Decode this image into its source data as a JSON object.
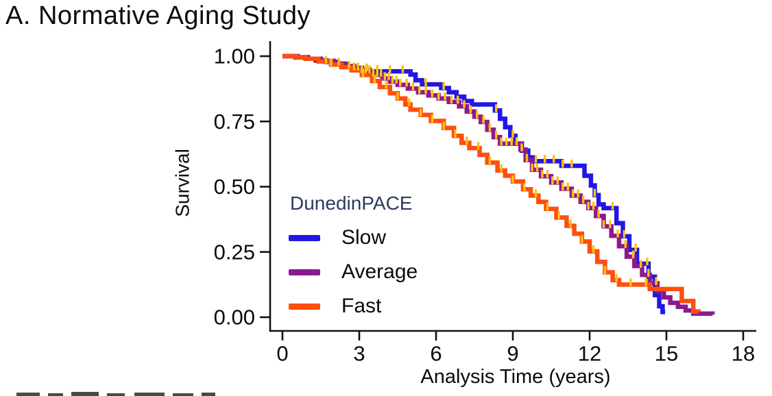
{
  "title": "A. Normative Aging Study",
  "chart_data": {
    "type": "line",
    "subtype": "kaplan-meier-step-survival",
    "title": "A. Normative Aging Study",
    "xlabel": "Analysis Time (years)",
    "ylabel": "Survival",
    "xlim": [
      0,
      18
    ],
    "ylim": [
      0.0,
      1.0
    ],
    "x_ticks": [
      0,
      3,
      6,
      9,
      12,
      15,
      18
    ],
    "y_ticks": [
      "1.00",
      "0.75",
      "0.50",
      "0.25",
      "0.00"
    ],
    "y_tick_values": [
      1.0,
      0.75,
      0.5,
      0.25,
      0.0
    ],
    "grid": false,
    "axis_color": "#111111",
    "censor_mark_color": "#ffc20e",
    "legend": {
      "title": "DunedinPACE",
      "title_color": "#2b3a5e",
      "position": "inside-lower-left"
    },
    "series": [
      {
        "name": "Slow",
        "color": "#2217e4",
        "points": [
          [
            0,
            1.0
          ],
          [
            0.5,
            0.995
          ],
          [
            0.9,
            0.99
          ],
          [
            1.3,
            0.984
          ],
          [
            1.7,
            0.978
          ],
          [
            2.1,
            0.97
          ],
          [
            2.5,
            0.962
          ],
          [
            2.8,
            0.955
          ],
          [
            3.1,
            0.948
          ],
          [
            3.4,
            0.942
          ],
          [
            5.0,
            0.93
          ],
          [
            5.2,
            0.908
          ],
          [
            5.45,
            0.892
          ],
          [
            6.2,
            0.878
          ],
          [
            6.5,
            0.862
          ],
          [
            6.8,
            0.845
          ],
          [
            7.1,
            0.828
          ],
          [
            7.4,
            0.815
          ],
          [
            8.3,
            0.792
          ],
          [
            8.5,
            0.76
          ],
          [
            8.7,
            0.728
          ],
          [
            8.9,
            0.695
          ],
          [
            9.1,
            0.665
          ],
          [
            9.35,
            0.638
          ],
          [
            9.6,
            0.612
          ],
          [
            9.8,
            0.598
          ],
          [
            10.9,
            0.58
          ],
          [
            11.8,
            0.542
          ],
          [
            12.05,
            0.505
          ],
          [
            12.2,
            0.468
          ],
          [
            12.35,
            0.432
          ],
          [
            12.55,
            0.418
          ],
          [
            13.05,
            0.36
          ],
          [
            13.3,
            0.31
          ],
          [
            13.55,
            0.258
          ],
          [
            13.85,
            0.205
          ],
          [
            14.3,
            0.155
          ],
          [
            14.55,
            0.085
          ],
          [
            14.72,
            0.042
          ],
          [
            14.85,
            0.02
          ],
          [
            14.95,
            0.02
          ]
        ],
        "censor_times": [
          1.7,
          2.2,
          3.3,
          3.7,
          4.2,
          4.7,
          5.6,
          6.3,
          8.35,
          9.0,
          9.9,
          10.25,
          10.6,
          10.95,
          11.3,
          12.2,
          12.9,
          13.35,
          13.8,
          14.25
        ]
      },
      {
        "name": "Average",
        "color": "#8c1a8f",
        "points": [
          [
            0,
            1.0
          ],
          [
            0.6,
            0.996
          ],
          [
            1.0,
            0.99
          ],
          [
            1.5,
            0.982
          ],
          [
            2.0,
            0.972
          ],
          [
            2.4,
            0.962
          ],
          [
            2.8,
            0.952
          ],
          [
            3.1,
            0.942
          ],
          [
            3.5,
            0.928
          ],
          [
            3.9,
            0.915
          ],
          [
            4.2,
            0.902
          ],
          [
            4.5,
            0.89
          ],
          [
            4.9,
            0.876
          ],
          [
            5.3,
            0.862
          ],
          [
            5.7,
            0.85
          ],
          [
            6.1,
            0.838
          ],
          [
            6.5,
            0.825
          ],
          [
            6.9,
            0.808
          ],
          [
            7.2,
            0.788
          ],
          [
            7.5,
            0.768
          ],
          [
            7.75,
            0.748
          ],
          [
            8.0,
            0.718
          ],
          [
            8.25,
            0.69
          ],
          [
            8.5,
            0.665
          ],
          [
            9.3,
            0.642
          ],
          [
            9.5,
            0.602
          ],
          [
            9.75,
            0.565
          ],
          [
            10.1,
            0.54
          ],
          [
            10.5,
            0.516
          ],
          [
            10.9,
            0.492
          ],
          [
            11.3,
            0.466
          ],
          [
            11.65,
            0.442
          ],
          [
            11.95,
            0.418
          ],
          [
            12.25,
            0.388
          ],
          [
            12.55,
            0.348
          ],
          [
            12.85,
            0.312
          ],
          [
            13.15,
            0.272
          ],
          [
            13.45,
            0.232
          ],
          [
            13.75,
            0.196
          ],
          [
            14.05,
            0.162
          ],
          [
            14.35,
            0.13
          ],
          [
            14.65,
            0.1
          ],
          [
            14.9,
            0.076
          ],
          [
            15.15,
            0.055
          ],
          [
            15.45,
            0.04
          ],
          [
            15.75,
            0.026
          ],
          [
            16.05,
            0.014
          ],
          [
            16.8,
            0.01
          ]
        ],
        "censor_times": [
          2.8,
          2.95,
          3.1,
          3.25,
          3.4,
          3.55,
          3.7,
          3.85,
          4.0,
          4.15,
          4.3,
          4.45,
          4.6,
          4.85,
          5.1,
          5.35,
          5.6,
          5.85,
          6.1,
          6.35,
          6.6,
          6.85,
          7.1,
          7.35,
          7.6,
          7.85,
          8.1,
          8.35,
          8.55,
          8.75,
          8.95,
          9.15,
          9.35,
          9.55,
          9.75,
          9.95,
          10.15,
          10.35,
          10.55,
          10.75,
          10.95,
          11.15,
          11.35,
          11.55,
          11.75,
          11.95,
          12.15,
          12.35,
          12.55,
          12.8,
          13.1,
          13.4,
          13.7,
          14.0,
          14.3,
          14.6
        ]
      },
      {
        "name": "Fast",
        "color": "#fc4f10",
        "points": [
          [
            0,
            1.0
          ],
          [
            0.5,
            0.996
          ],
          [
            0.9,
            0.99
          ],
          [
            1.4,
            0.98
          ],
          [
            1.9,
            0.968
          ],
          [
            2.3,
            0.958
          ],
          [
            2.7,
            0.946
          ],
          [
            3.1,
            0.928
          ],
          [
            3.5,
            0.905
          ],
          [
            3.8,
            0.882
          ],
          [
            4.2,
            0.858
          ],
          [
            4.5,
            0.838
          ],
          [
            4.8,
            0.815
          ],
          [
            5.0,
            0.795
          ],
          [
            5.4,
            0.775
          ],
          [
            5.8,
            0.752
          ],
          [
            6.3,
            0.725
          ],
          [
            6.7,
            0.695
          ],
          [
            7.0,
            0.668
          ],
          [
            7.3,
            0.648
          ],
          [
            7.7,
            0.622
          ],
          [
            8.0,
            0.592
          ],
          [
            8.4,
            0.562
          ],
          [
            8.7,
            0.542
          ],
          [
            9.0,
            0.52
          ],
          [
            9.4,
            0.49
          ],
          [
            9.7,
            0.466
          ],
          [
            10.0,
            0.442
          ],
          [
            10.3,
            0.415
          ],
          [
            10.7,
            0.382
          ],
          [
            11.1,
            0.35
          ],
          [
            11.4,
            0.32
          ],
          [
            11.7,
            0.29
          ],
          [
            12.0,
            0.252
          ],
          [
            12.3,
            0.212
          ],
          [
            12.6,
            0.172
          ],
          [
            12.9,
            0.142
          ],
          [
            13.15,
            0.125
          ],
          [
            14.35,
            0.108
          ],
          [
            15.6,
            0.062
          ],
          [
            16.05,
            0.022
          ],
          [
            16.25,
            0.02
          ]
        ],
        "censor_times": [
          1.9,
          2.6,
          3.15,
          3.6,
          4.05,
          4.5,
          4.95,
          5.4,
          5.85,
          6.3,
          6.75,
          7.2,
          7.65,
          8.1,
          8.55,
          9.0,
          9.45,
          9.9,
          10.35,
          10.8,
          11.25,
          11.7,
          12.15,
          12.6,
          13.05,
          13.6,
          14.2
        ]
      }
    ],
    "artifacts": {
      "bottom_cropped_text_sliver": true
    }
  }
}
